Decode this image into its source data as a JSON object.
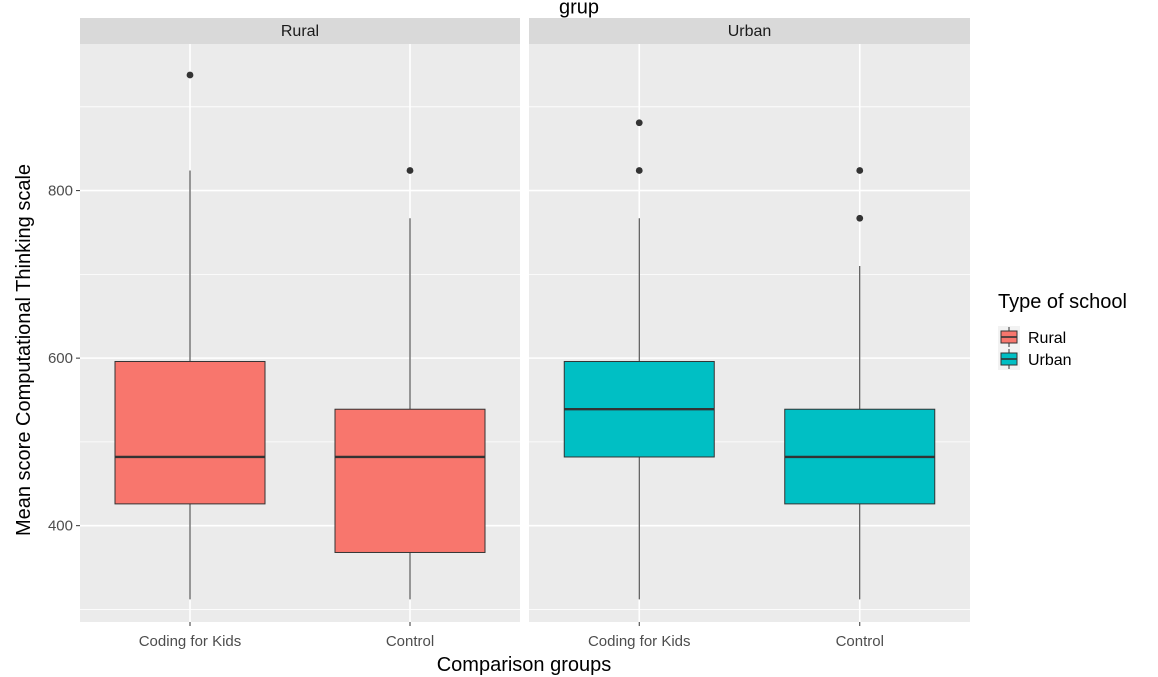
{
  "chart_data": {
    "type": "boxplot",
    "title_fragment": "grup",
    "xlabel": "Comparison groups",
    "ylabel": "Mean score Computational Thinking scale",
    "ylim": [
      285,
      975
    ],
    "y_ticks": [
      400,
      600,
      800
    ],
    "categories": [
      "Coding for Kids",
      "Control"
    ],
    "grid": true,
    "legend": {
      "title": "Type of school",
      "position": "right",
      "entries": [
        {
          "label": "Rural",
          "color": "#F8766D"
        },
        {
          "label": "Urban",
          "color": "#00BFC4"
        }
      ]
    },
    "panels": [
      {
        "strip": "Rural",
        "fill": "#F8766D",
        "boxes": [
          {
            "category": "Coding for Kids",
            "lower_whisker": 312,
            "q1": 426,
            "median": 482,
            "q3": 596,
            "upper_whisker": 824,
            "outliers": [
              938
            ]
          },
          {
            "category": "Control",
            "lower_whisker": 312,
            "q1": 368,
            "median": 482,
            "q3": 539,
            "upper_whisker": 767,
            "outliers": [
              824
            ]
          }
        ]
      },
      {
        "strip": "Urban",
        "fill": "#00BFC4",
        "boxes": [
          {
            "category": "Coding for Kids",
            "lower_whisker": 312,
            "q1": 482,
            "median": 539,
            "q3": 596,
            "upper_whisker": 767,
            "outliers": [
              824,
              881
            ]
          },
          {
            "category": "Control",
            "lower_whisker": 312,
            "q1": 426,
            "median": 482,
            "q3": 539,
            "upper_whisker": 710,
            "outliers": [
              767,
              824
            ]
          }
        ]
      }
    ]
  }
}
